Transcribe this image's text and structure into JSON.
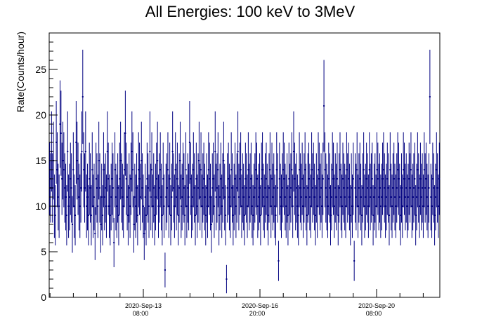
{
  "chart_data": {
    "type": "scatter",
    "style": "error-bars",
    "title": "All Energies:  100 keV to 3MeV",
    "xlabel": "",
    "ylabel": "Rate(Counts/hour)",
    "ylim": [
      0,
      29
    ],
    "y_ticks": [
      0,
      5,
      10,
      15,
      20,
      25
    ],
    "x_tick_labels": [
      {
        "date": "2020-Sep-13",
        "time": "08:00"
      },
      {
        "date": "2020-Sep-16",
        "time": "20:00"
      },
      {
        "date": "2020-Sep-20",
        "time": "08:00"
      }
    ],
    "series_color": "#000080",
    "grid": false,
    "legend": "none",
    "series": [
      {
        "values": [
          13,
          12,
          16,
          12,
          15,
          10,
          9,
          17,
          14,
          11,
          10,
          19,
          18,
          13,
          15,
          14,
          12,
          11,
          9,
          16,
          10,
          11,
          13,
          12,
          8,
          14,
          10,
          9,
          17,
          15,
          13,
          11,
          10,
          12,
          16,
          22,
          14,
          12,
          16,
          10,
          11,
          9,
          13,
          12,
          9,
          14,
          10,
          11,
          7,
          13,
          12,
          10,
          15,
          12,
          8,
          11,
          9,
          14,
          11,
          12,
          10,
          16,
          13,
          10,
          9,
          11,
          13,
          12,
          6,
          14,
          11,
          10,
          12,
          9,
          13,
          15,
          12,
          11,
          10,
          14,
          18,
          13,
          11,
          9,
          12,
          10,
          13,
          16,
          14,
          8,
          11,
          10,
          12,
          9,
          14,
          13,
          11,
          15,
          12,
          10,
          7,
          11,
          9,
          13,
          12,
          10,
          16,
          11,
          14,
          10,
          12,
          9,
          11,
          13,
          15,
          10,
          12,
          14,
          11,
          9,
          13,
          10,
          3,
          11,
          12,
          14,
          10,
          13,
          9,
          11,
          16,
          12,
          10,
          14,
          11,
          13,
          9,
          12,
          15,
          10,
          11,
          13,
          12,
          9,
          14,
          10,
          12,
          11,
          17,
          13,
          10,
          11,
          14,
          12,
          9,
          13,
          10,
          12,
          15,
          11,
          14,
          10,
          12,
          13,
          11,
          9,
          12,
          10,
          14,
          13,
          11,
          8,
          12,
          13,
          10,
          16,
          11,
          12,
          14,
          9,
          11,
          13,
          10,
          12,
          15,
          11,
          9,
          2,
          12,
          13,
          11,
          10,
          14,
          12,
          9,
          11,
          13,
          10,
          12,
          16,
          11,
          13,
          14,
          10,
          12,
          11,
          9,
          13,
          12,
          10,
          14,
          11,
          12,
          13,
          10,
          9,
          11,
          12,
          14,
          13,
          10,
          11,
          12,
          9,
          13,
          14,
          11,
          10,
          12,
          13,
          11,
          9,
          12,
          14,
          10,
          13,
          11,
          12,
          10,
          9,
          14,
          12,
          4,
          13,
          11,
          10,
          12,
          14,
          13,
          11,
          10,
          12,
          9,
          13,
          11,
          12,
          14,
          10,
          16,
          13,
          11,
          12,
          10,
          9,
          14,
          12,
          11,
          13,
          10,
          12,
          14,
          11,
          9,
          12,
          13,
          11,
          10,
          14,
          12,
          13,
          11,
          9,
          12,
          10,
          14,
          13,
          11,
          12,
          10,
          13,
          21,
          14,
          12,
          11,
          10,
          13,
          12,
          9,
          11,
          14,
          13,
          10,
          12,
          11,
          13,
          9,
          12,
          14,
          11,
          10,
          13,
          12,
          11,
          10,
          14,
          12,
          13,
          11,
          9,
          12,
          10,
          13,
          4,
          12,
          11,
          14,
          10,
          12,
          13,
          11,
          9,
          12,
          14,
          10,
          11,
          13,
          12,
          10,
          14,
          11,
          12,
          13,
          9,
          11,
          12,
          10,
          14,
          13,
          11,
          12,
          10,
          11,
          13,
          14,
          12,
          10,
          11,
          13,
          12,
          9,
          14,
          11,
          10,
          12,
          13,
          11,
          10,
          12,
          14,
          13,
          11,
          9,
          12,
          10,
          14,
          13,
          11,
          12,
          10,
          11,
          13,
          12,
          14,
          10,
          11,
          12,
          13,
          9,
          11,
          14,
          12,
          10,
          13,
          11,
          12,
          10,
          14,
          12,
          13,
          11,
          10,
          12,
          22,
          11,
          10,
          13,
          12,
          9,
          11,
          14,
          12,
          10,
          13
        ]
      }
    ]
  }
}
